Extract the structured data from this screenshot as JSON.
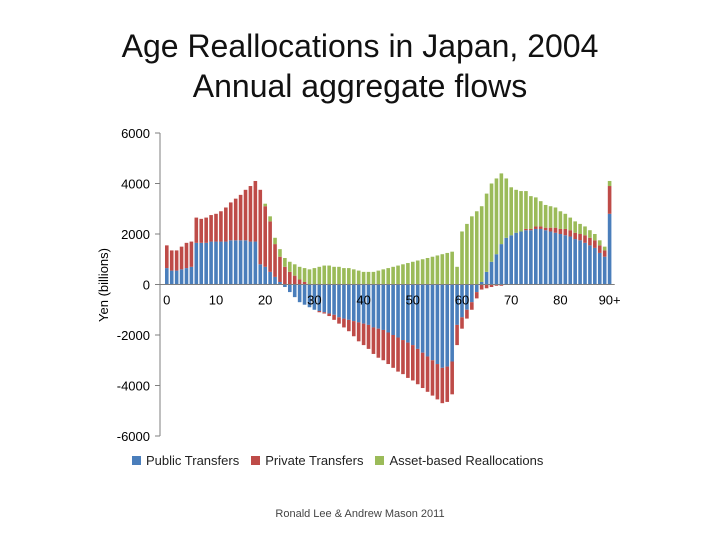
{
  "title_line1": "Age Reallocations in Japan, 2004",
  "title_line2": "Annual aggregate flows",
  "credit": "Ronald Lee & Andrew Mason 2011",
  "chart_data": {
    "type": "bar",
    "stacked": true,
    "xlabel": "",
    "ylabel": "Yen (billions)",
    "ylim": [
      -6000,
      6000
    ],
    "yticks": [
      -6000,
      -4000,
      -2000,
      0,
      2000,
      4000,
      6000
    ],
    "ytick_labels": [
      "-6000",
      "-4000",
      "-2000",
      "0",
      "2000",
      "4000",
      "6000"
    ],
    "xticks": [
      0,
      10,
      20,
      30,
      40,
      50,
      60,
      70,
      80,
      90
    ],
    "xtick_labels": [
      "0",
      "10",
      "20",
      "30",
      "40",
      "50",
      "60",
      "70",
      "80",
      "90+"
    ],
    "legend_position": "bottom",
    "x": [
      0,
      1,
      2,
      3,
      4,
      5,
      6,
      7,
      8,
      9,
      10,
      11,
      12,
      13,
      14,
      15,
      16,
      17,
      18,
      19,
      20,
      21,
      22,
      23,
      24,
      25,
      26,
      27,
      28,
      29,
      30,
      31,
      32,
      33,
      34,
      35,
      36,
      37,
      38,
      39,
      40,
      41,
      42,
      43,
      44,
      45,
      46,
      47,
      48,
      49,
      50,
      51,
      52,
      53,
      54,
      55,
      56,
      57,
      58,
      59,
      60,
      61,
      62,
      63,
      64,
      65,
      66,
      67,
      68,
      69,
      70,
      71,
      72,
      73,
      74,
      75,
      76,
      77,
      78,
      79,
      80,
      81,
      82,
      83,
      84,
      85,
      86,
      87,
      88,
      89,
      90
    ],
    "series": [
      {
        "name": "Public Transfers",
        "color": "#4a7ebb",
        "values": [
          650,
          550,
          550,
          600,
          650,
          700,
          1650,
          1650,
          1650,
          1700,
          1700,
          1700,
          1700,
          1750,
          1750,
          1750,
          1750,
          1700,
          1700,
          800,
          700,
          500,
          300,
          100,
          -100,
          -300,
          -500,
          -700,
          -800,
          -900,
          -1000,
          -1050,
          -1100,
          -1150,
          -1200,
          -1300,
          -1350,
          -1400,
          -1450,
          -1500,
          -1550,
          -1600,
          -1700,
          -1750,
          -1800,
          -1900,
          -2000,
          -2100,
          -2200,
          -2300,
          -2400,
          -2550,
          -2700,
          -2850,
          -3000,
          -3150,
          -3300,
          -3250,
          -3050,
          -1600,
          -1300,
          -1000,
          -700,
          -300,
          100,
          500,
          900,
          1200,
          1600,
          1850,
          1950,
          2050,
          2100,
          2150,
          2150,
          2200,
          2200,
          2150,
          2100,
          2050,
          2000,
          1950,
          1900,
          1800,
          1750,
          1650,
          1550,
          1450,
          1250,
          1100,
          2800
        ],
        "negative": []
      },
      {
        "name": "Private Transfers",
        "color": "#be4b48",
        "values": [
          900,
          800,
          800,
          900,
          1000,
          1000,
          1000,
          950,
          1000,
          1050,
          1100,
          1200,
          1350,
          1500,
          1650,
          1800,
          2000,
          2200,
          2400,
          2950,
          2400,
          2000,
          1300,
          1000,
          700,
          500,
          350,
          200,
          100,
          0,
          0,
          -50,
          -50,
          -100,
          -200,
          -250,
          -350,
          -450,
          -600,
          -750,
          -850,
          -950,
          -1050,
          -1150,
          -1200,
          -1250,
          -1300,
          -1350,
          -1350,
          -1400,
          -1400,
          -1400,
          -1400,
          -1400,
          -1400,
          -1400,
          -1400,
          -1400,
          -1300,
          -800,
          -450,
          -350,
          -300,
          -250,
          -200,
          -150,
          -100,
          -50,
          -50,
          0,
          0,
          0,
          0,
          50,
          50,
          100,
          100,
          100,
          150,
          200,
          200,
          250,
          250,
          250,
          250,
          300,
          300,
          300,
          300,
          250,
          1100
        ],
        "negative": []
      },
      {
        "name": "Asset-based Reallocations",
        "color": "#9bbb59",
        "values": [
          0,
          0,
          0,
          0,
          0,
          0,
          0,
          0,
          0,
          0,
          0,
          0,
          0,
          0,
          0,
          0,
          0,
          0,
          0,
          0,
          100,
          200,
          250,
          300,
          350,
          400,
          450,
          500,
          550,
          600,
          650,
          700,
          750,
          750,
          700,
          700,
          650,
          650,
          600,
          550,
          500,
          500,
          500,
          550,
          600,
          650,
          700,
          750,
          800,
          850,
          900,
          950,
          1000,
          1050,
          1100,
          1150,
          1200,
          1250,
          1300,
          700,
          2100,
          2400,
          2700,
          2900,
          3000,
          3100,
          3100,
          3000,
          2800,
          2350,
          1900,
          1700,
          1600,
          1500,
          1300,
          1150,
          1000,
          900,
          850,
          800,
          700,
          600,
          500,
          450,
          400,
          350,
          300,
          250,
          200,
          150,
          200
        ],
        "negative": []
      }
    ]
  },
  "colors": {
    "public": "#4a7ebb",
    "private": "#be4b48",
    "asset": "#9bbb59",
    "axis": "#7f7f7f"
  }
}
